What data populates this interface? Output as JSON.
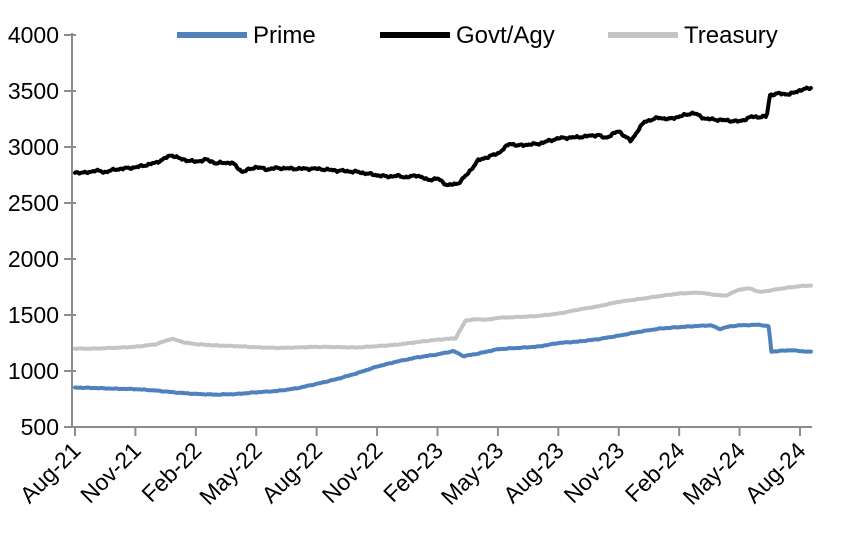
{
  "chart_data": {
    "type": "line",
    "title": "",
    "xlabel": "",
    "ylabel": "",
    "grid": false,
    "background": "#ffffff",
    "axis_color": "#8c8c8c",
    "ylim": [
      500,
      4000
    ],
    "y_ticks": [
      500,
      1000,
      1500,
      2000,
      2500,
      3000,
      3500,
      4000
    ],
    "x_tick_labels": [
      "Aug-21",
      "Nov-21",
      "Feb-22",
      "May-22",
      "Aug-22",
      "Nov-22",
      "Feb-23",
      "May-23",
      "Aug-23",
      "Nov-23",
      "Feb-24",
      "May-24",
      "Aug-24"
    ],
    "x_months_per_tick": 3,
    "x_domain_months": [
      0,
      36.55
    ],
    "legend_position": "top-center",
    "legend": [
      {
        "name": "Prime",
        "color": "#4f81bd"
      },
      {
        "name": "Govt/Agy",
        "color": "#000000"
      },
      {
        "name": "Treasury",
        "color": "#c4c4c4"
      }
    ],
    "series": [
      {
        "name": "Prime",
        "color": "#4f81bd",
        "wiggle": 4,
        "points": [
          [
            0,
            852
          ],
          [
            1,
            848
          ],
          [
            2,
            842
          ],
          [
            3,
            838
          ],
          [
            4,
            826
          ],
          [
            5,
            808
          ],
          [
            6,
            795
          ],
          [
            7,
            789
          ],
          [
            8,
            794
          ],
          [
            9,
            810
          ],
          [
            10,
            821
          ],
          [
            11,
            845
          ],
          [
            12,
            885
          ],
          [
            13,
            928
          ],
          [
            14,
            980
          ],
          [
            15,
            1040
          ],
          [
            16,
            1085
          ],
          [
            17,
            1122
          ],
          [
            18,
            1148
          ],
          [
            18.8,
            1178
          ],
          [
            19.3,
            1132
          ],
          [
            20,
            1155
          ],
          [
            21,
            1195
          ],
          [
            22,
            1206
          ],
          [
            23,
            1218
          ],
          [
            24,
            1250
          ],
          [
            25,
            1263
          ],
          [
            26,
            1285
          ],
          [
            27,
            1315
          ],
          [
            28,
            1350
          ],
          [
            29,
            1378
          ],
          [
            30,
            1392
          ],
          [
            31,
            1403
          ],
          [
            31.6,
            1408
          ],
          [
            32,
            1375
          ],
          [
            32.5,
            1398
          ],
          [
            33,
            1408
          ],
          [
            34,
            1413
          ],
          [
            34.45,
            1398
          ],
          [
            34.58,
            1172
          ],
          [
            35,
            1180
          ],
          [
            35.6,
            1186
          ],
          [
            36,
            1178
          ],
          [
            36.55,
            1170
          ]
        ]
      },
      {
        "name": "Govt/Agy",
        "color": "#000000",
        "wiggle": 13,
        "points": [
          [
            0,
            2775
          ],
          [
            0.5,
            2768
          ],
          [
            1,
            2790
          ],
          [
            1.5,
            2776
          ],
          [
            2,
            2800
          ],
          [
            3,
            2818
          ],
          [
            4,
            2858
          ],
          [
            4.8,
            2928
          ],
          [
            5.3,
            2890
          ],
          [
            6,
            2868
          ],
          [
            6.5,
            2888
          ],
          [
            7,
            2856
          ],
          [
            7.8,
            2860
          ],
          [
            8.3,
            2778
          ],
          [
            9,
            2822
          ],
          [
            9.5,
            2800
          ],
          [
            10,
            2812
          ],
          [
            11,
            2806
          ],
          [
            12,
            2806
          ],
          [
            13,
            2790
          ],
          [
            14,
            2778
          ],
          [
            15,
            2748
          ],
          [
            15.5,
            2736
          ],
          [
            16,
            2742
          ],
          [
            16.5,
            2730
          ],
          [
            17,
            2748
          ],
          [
            17.5,
            2706
          ],
          [
            18,
            2718
          ],
          [
            18.5,
            2658
          ],
          [
            19,
            2672
          ],
          [
            19.5,
            2760
          ],
          [
            20,
            2878
          ],
          [
            20.5,
            2912
          ],
          [
            21,
            2942
          ],
          [
            21.6,
            3032
          ],
          [
            22,
            3012
          ],
          [
            22.5,
            3022
          ],
          [
            23,
            3028
          ],
          [
            24,
            3078
          ],
          [
            25,
            3088
          ],
          [
            26,
            3108
          ],
          [
            26.3,
            3078
          ],
          [
            27,
            3142
          ],
          [
            27.6,
            3052
          ],
          [
            28,
            3162
          ],
          [
            28.3,
            3228
          ],
          [
            29,
            3262
          ],
          [
            29.5,
            3248
          ],
          [
            30,
            3272
          ],
          [
            30.7,
            3305
          ],
          [
            31.3,
            3252
          ],
          [
            32,
            3242
          ],
          [
            33,
            3228
          ],
          [
            33.6,
            3270
          ],
          [
            34,
            3268
          ],
          [
            34.35,
            3272
          ],
          [
            34.5,
            3465
          ],
          [
            35,
            3478
          ],
          [
            35.5,
            3470
          ],
          [
            36,
            3508
          ],
          [
            36.55,
            3528
          ]
        ]
      },
      {
        "name": "Treasury",
        "color": "#c4c4c4",
        "wiggle": 4,
        "points": [
          [
            0,
            1200
          ],
          [
            1,
            1200
          ],
          [
            2,
            1207
          ],
          [
            3,
            1216
          ],
          [
            4,
            1238
          ],
          [
            4.8,
            1288
          ],
          [
            5.5,
            1252
          ],
          [
            6,
            1240
          ],
          [
            7,
            1228
          ],
          [
            8,
            1222
          ],
          [
            9,
            1212
          ],
          [
            10,
            1206
          ],
          [
            11,
            1210
          ],
          [
            12,
            1216
          ],
          [
            13,
            1214
          ],
          [
            14,
            1210
          ],
          [
            15,
            1222
          ],
          [
            16,
            1235
          ],
          [
            17,
            1258
          ],
          [
            18,
            1280
          ],
          [
            18.9,
            1292
          ],
          [
            19.4,
            1452
          ],
          [
            20,
            1462
          ],
          [
            20.5,
            1458
          ],
          [
            21,
            1475
          ],
          [
            22,
            1482
          ],
          [
            23,
            1492
          ],
          [
            24,
            1512
          ],
          [
            25,
            1548
          ],
          [
            26,
            1578
          ],
          [
            26.5,
            1598
          ],
          [
            27,
            1618
          ],
          [
            28,
            1642
          ],
          [
            29,
            1668
          ],
          [
            30,
            1692
          ],
          [
            31,
            1700
          ],
          [
            31.8,
            1680
          ],
          [
            32.3,
            1672
          ],
          [
            33,
            1728
          ],
          [
            33.5,
            1738
          ],
          [
            34,
            1705
          ],
          [
            34.5,
            1718
          ],
          [
            35,
            1735
          ],
          [
            36,
            1758
          ],
          [
            36.55,
            1763
          ]
        ]
      }
    ]
  }
}
